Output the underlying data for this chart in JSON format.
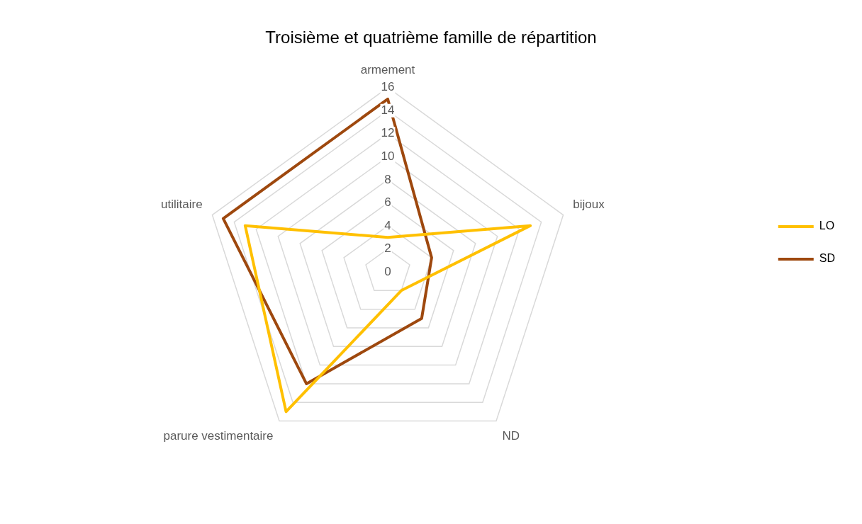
{
  "chart_data": {
    "type": "radar",
    "title": "Troisième et quatrième famille de répartition",
    "categories": [
      "armement",
      "bijoux",
      "ND",
      "parure vestimentaire",
      "utilitaire"
    ],
    "series": [
      {
        "name": "LO",
        "color": "#ffc000",
        "values": [
          3,
          13,
          2,
          15,
          13
        ]
      },
      {
        "name": "SD",
        "color": "#9e480e",
        "values": [
          15,
          4,
          5,
          12,
          15
        ]
      }
    ],
    "ylim": [
      0,
      16
    ],
    "yticks": [
      0,
      2,
      4,
      6,
      8,
      10,
      12,
      14,
      16
    ],
    "grid": true,
    "legend": "right",
    "marker": "none"
  }
}
